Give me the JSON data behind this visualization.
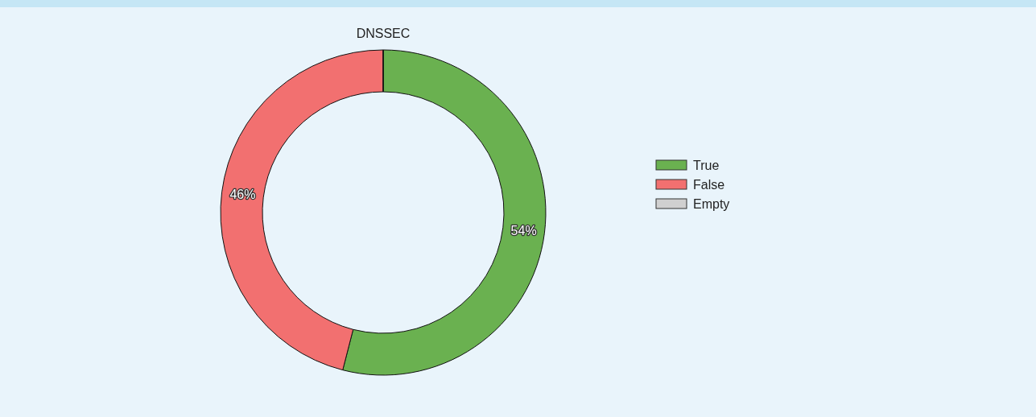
{
  "chart_data": {
    "type": "donut",
    "title": "DNSSEC",
    "categories": [
      "True",
      "False",
      "Empty"
    ],
    "values": [
      54,
      46,
      0
    ],
    "colors": [
      "#6ab150",
      "#f27070",
      "#d0d0d0"
    ],
    "value_labels": [
      "54%",
      "46%",
      null
    ],
    "legend": "right"
  }
}
